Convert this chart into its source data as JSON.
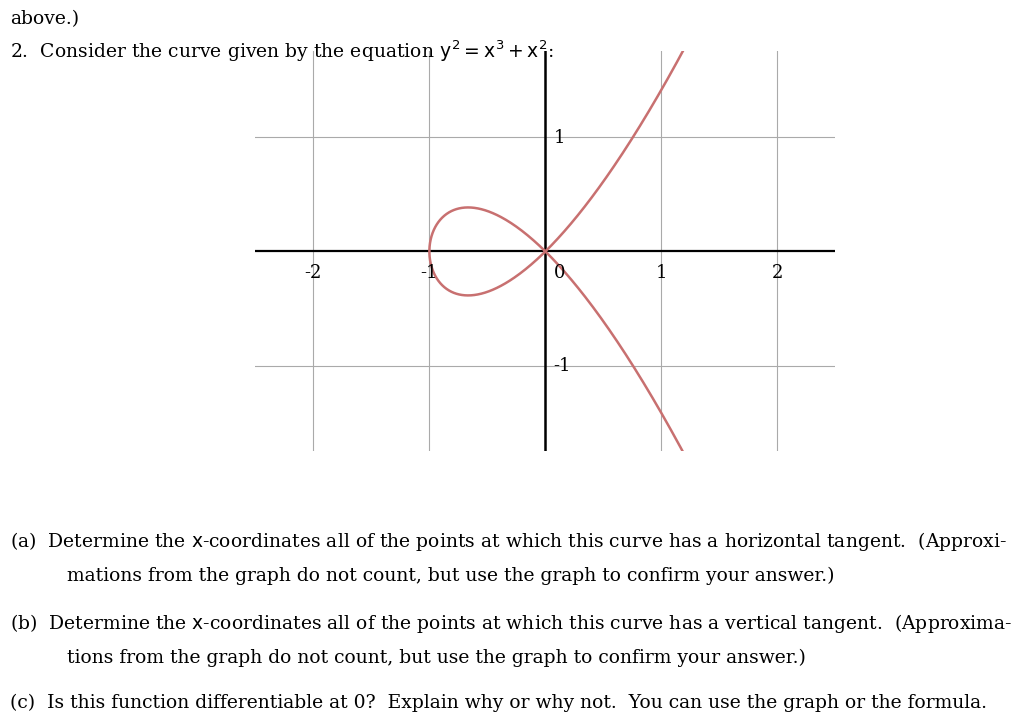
{
  "curve_color": "#c87070",
  "curve_linewidth": 1.8,
  "axis_color": "#000000",
  "grid_color": "#aaaaaa",
  "grid_linewidth": 0.8,
  "xlim": [
    -2.5,
    2.5
  ],
  "ylim": [
    -1.75,
    1.75
  ],
  "xticks": [
    -2,
    -1,
    0,
    1,
    2
  ],
  "yticks": [
    -1,
    1
  ],
  "tick_fontsize": 13,
  "background_color": "#ffffff",
  "text_fontsize": 13.5,
  "above_text": "above.)",
  "title_line1": "2.  Consider the curve given by the equation $y^2 = x^3 + x^2$:",
  "sub_a_line1": "(a)  Determine the $x$-coordinates all of the points at which this curve has a horizontal tangent.  (Approxi-",
  "sub_a_line2": "mations from the graph do not count, but use the graph to confirm your answer.)",
  "sub_b_line1": "(b)  Determine the $x$-coordinates all of the points at which this curve has a vertical tangent.  (Approxima-",
  "sub_b_line2": "tions from the graph do not count, but use the graph to confirm your answer.)",
  "sub_c": "(c)  Is this function differentiable at 0?  Explain why or why not.  You can use the graph or the formula."
}
